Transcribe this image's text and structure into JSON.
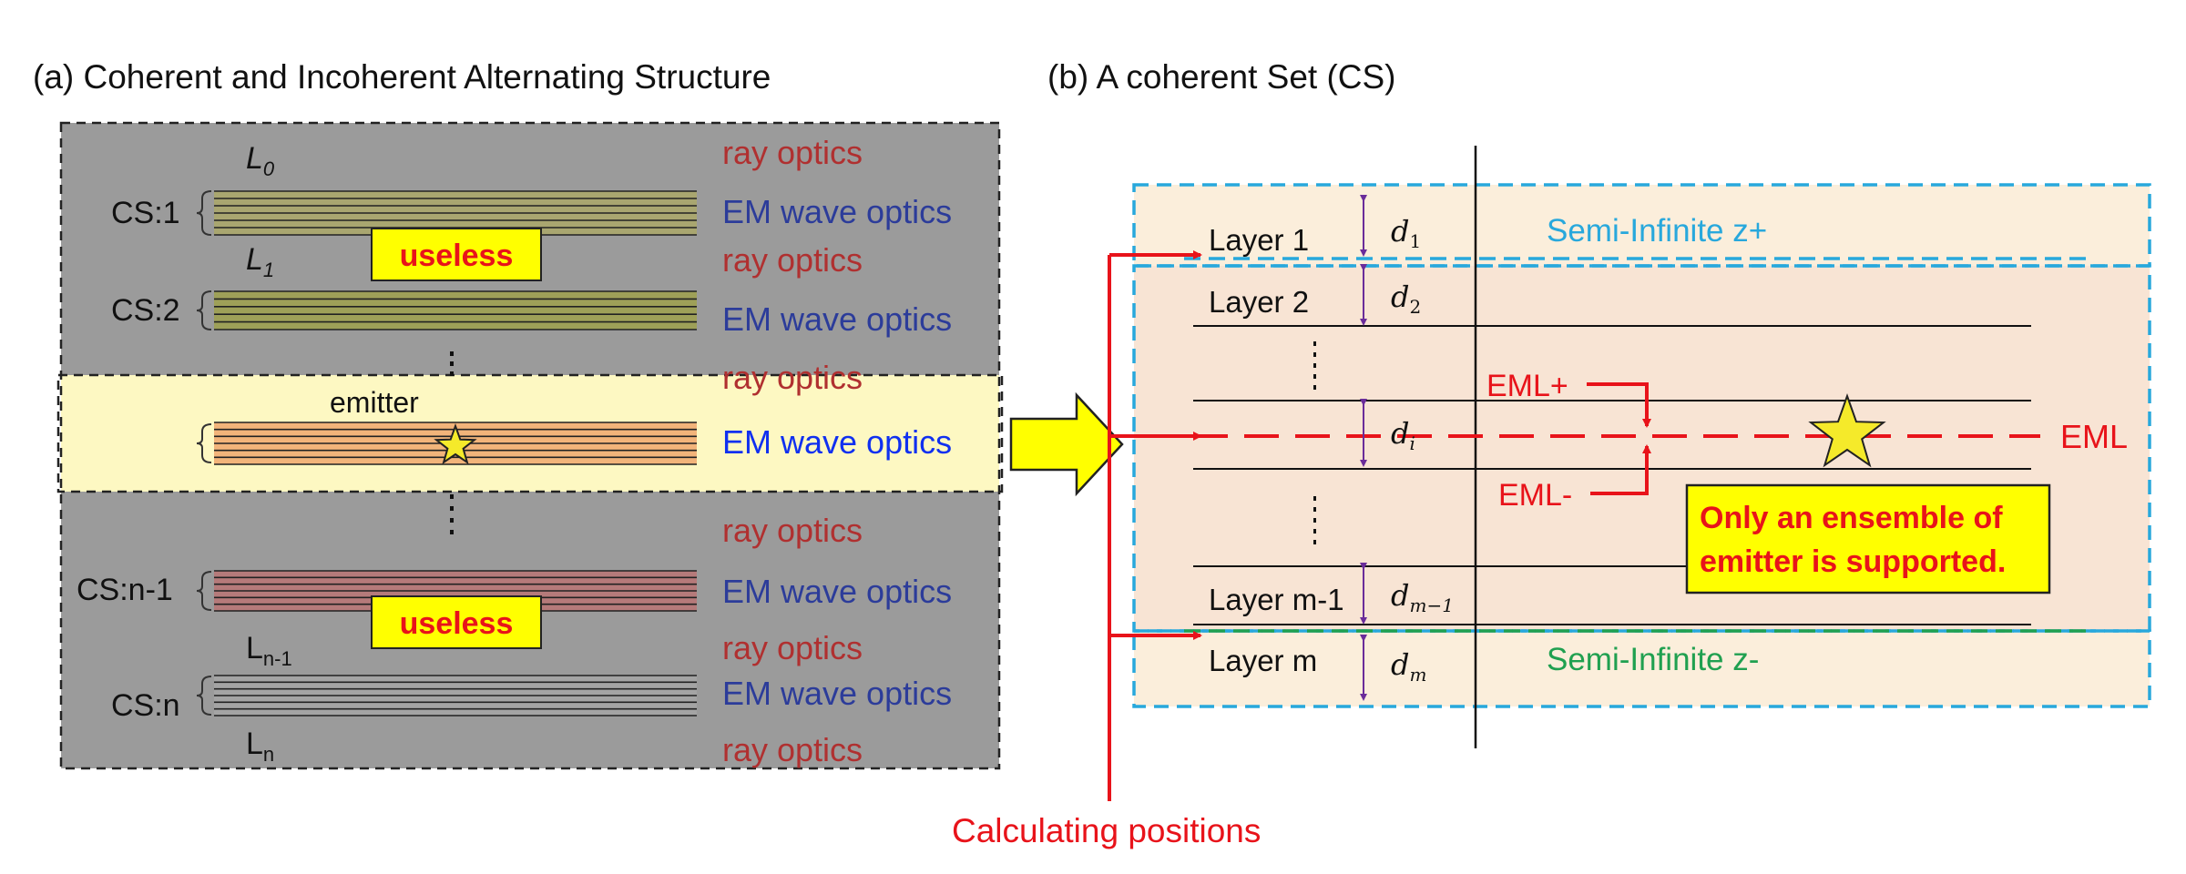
{
  "panel_a": {
    "title": "(a) Coherent and Incoherent Alternating Structure",
    "labels": {
      "L0": "L",
      "L0_sub": "0",
      "L1": "L",
      "L1_sub": "1",
      "Ln1": "L",
      "Ln1_sub": "n-1",
      "Ln": "L",
      "Ln_sub": "n"
    },
    "cs_labels": {
      "cs1": "CS:1",
      "cs2": "CS:2",
      "csn1": "CS:n-1",
      "csn": "CS:n"
    },
    "emitter_label": "emitter",
    "useless": "useless",
    "ray_optics": "ray optics",
    "em": "EM",
    "wave_optics": "wave optics"
  },
  "panel_b": {
    "title": "(b) A coherent Set (CS)",
    "layers": {
      "layer1": "Layer 1",
      "layer2": "Layer 2",
      "layerm1": "Layer m-1",
      "layerm": "Layer m"
    },
    "d_labels": {
      "d": "d",
      "d1_sub": "1",
      "d2_sub": "2",
      "di_sub": "i",
      "dm1_sub": "m−1",
      "dm_sub": "m"
    },
    "semi_inf_plus": "Semi-Infinite z+",
    "semi_inf_minus": "Semi-Infinite z-",
    "eml": "EML",
    "eml_plus": "EML+",
    "eml_minus": "EML-",
    "note_line1": "Only an ensemble of",
    "note_line2": "emitter is supported.",
    "calc_positions": "Calculating positions"
  },
  "colors": {
    "gray_panel": "#9b9b9b",
    "yellow_panel": "#fdf8c2",
    "ray_red": "#b03030",
    "em_blue": "#2c3c9a",
    "em_bright_blue": "#1030f0",
    "red": "#e8131a",
    "cyan": "#28a8dc",
    "green": "#20a050",
    "peach": "#f8e4d4",
    "tan": "#fbeedb",
    "purple": "#6a2c9a"
  }
}
